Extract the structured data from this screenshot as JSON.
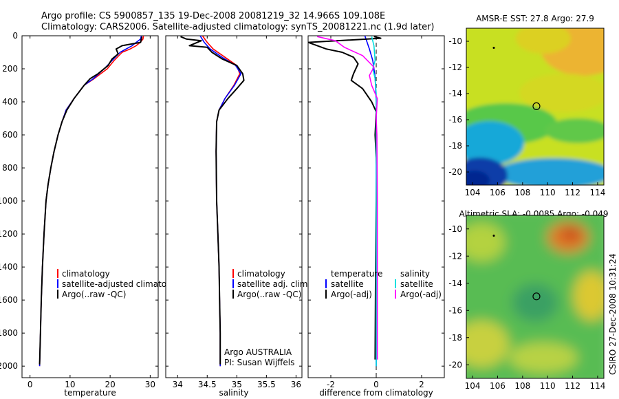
{
  "header": {
    "line1": "Argo profile: CS 5900857_135 19-Dec-2008 20081219_32 14.966S 109.108E",
    "line2": "Climatology: CARS2006. Satellite-adjusted climatology: synTS_20081221.nc (1.9d later)"
  },
  "footer": {
    "stamp": "CSIRO 27-Dec-2008 10:31:24"
  },
  "colors": {
    "climatology": "#ff0000",
    "satellite": "#0000ff",
    "argo": "#000000",
    "sal_satellite": "#00e0e0",
    "sal_argo": "#ff00ff"
  },
  "chart_data": [
    {
      "type": "line",
      "id": "temperature",
      "xlabel": "temperature",
      "xlim": [
        -2,
        32
      ],
      "xticks": [
        0,
        10,
        20,
        30
      ],
      "ylim": [
        2070,
        0
      ],
      "yticks": [
        0,
        200,
        400,
        600,
        800,
        1000,
        1200,
        1400,
        1600,
        1800,
        2000
      ],
      "legend": [
        "climatology",
        "satellite-adjusted climatology",
        "Argo(..raw -QC)"
      ],
      "series": [
        {
          "name": "climatology",
          "color": "#ff0000",
          "points": [
            [
              28.3,
              0
            ],
            [
              28.2,
              20
            ],
            [
              27.5,
              40
            ],
            [
              26.5,
              60
            ],
            [
              25,
              80
            ],
            [
              23,
              100
            ],
            [
              21,
              150
            ],
            [
              19.3,
              200
            ],
            [
              16,
              260
            ],
            [
              13.5,
              300
            ],
            [
              11,
              380
            ],
            [
              9,
              450
            ],
            [
              8,
              520
            ],
            [
              7,
              600
            ],
            [
              6,
              700
            ],
            [
              5.2,
              800
            ],
            [
              4.5,
              900
            ],
            [
              4,
              1000
            ],
            [
              3.5,
              1200
            ],
            [
              3.1,
              1400
            ],
            [
              2.8,
              1600
            ],
            [
              2.6,
              1800
            ],
            [
              2.4,
              2000
            ]
          ]
        },
        {
          "name": "satellite-adjusted climatology",
          "color": "#0000ff",
          "points": [
            [
              27.8,
              0
            ],
            [
              27.6,
              20
            ],
            [
              26.5,
              40
            ],
            [
              25.5,
              60
            ],
            [
              24,
              80
            ],
            [
              22.5,
              100
            ],
            [
              20.5,
              150
            ],
            [
              18.5,
              200
            ],
            [
              15.8,
              260
            ],
            [
              13.5,
              300
            ],
            [
              11,
              380
            ],
            [
              9,
              450
            ],
            [
              8,
              520
            ],
            [
              7,
              600
            ],
            [
              6,
              700
            ],
            [
              5.2,
              800
            ],
            [
              4.5,
              900
            ],
            [
              4,
              1000
            ],
            [
              3.5,
              1200
            ],
            [
              3.1,
              1400
            ],
            [
              2.8,
              1600
            ],
            [
              2.6,
              1800
            ],
            [
              2.4,
              2000
            ]
          ]
        },
        {
          "name": "Argo(..raw -QC)",
          "color": "#000000",
          "points": [
            [
              27.9,
              5
            ],
            [
              27.8,
              20
            ],
            [
              27.6,
              40
            ],
            [
              23,
              60
            ],
            [
              21.5,
              80
            ],
            [
              22,
              110
            ],
            [
              20.5,
              140
            ],
            [
              19.5,
              180
            ],
            [
              17,
              230
            ],
            [
              15,
              260
            ],
            [
              13.5,
              300
            ],
            [
              11,
              380
            ],
            [
              9.2,
              450
            ],
            [
              8,
              520
            ],
            [
              7,
              600
            ],
            [
              6,
              700
            ],
            [
              5.2,
              800
            ],
            [
              4.5,
              900
            ],
            [
              4,
              1000
            ],
            [
              3.5,
              1200
            ],
            [
              3.1,
              1400
            ],
            [
              2.8,
              1600
            ],
            [
              2.6,
              1800
            ],
            [
              2.4,
              1990
            ]
          ]
        }
      ]
    },
    {
      "type": "line",
      "id": "salinity",
      "xlabel": "salinity",
      "xlim": [
        33.8,
        36.1
      ],
      "xticks": [
        34,
        34.5,
        35,
        35.5,
        36
      ],
      "ylim": [
        2070,
        0
      ],
      "yticks": [
        0,
        200,
        400,
        600,
        800,
        1000,
        1200,
        1400,
        1600,
        1800,
        2000
      ],
      "legend": [
        "climatology",
        "satellite adj. clim.",
        "Argo(..raw -QC)"
      ],
      "notes": [
        "Argo AUSTRALIA",
        "PI: Susan Wijffels"
      ],
      "series": [
        {
          "name": "climatology",
          "color": "#ff0000",
          "points": [
            [
              34.42,
              0
            ],
            [
              34.5,
              40
            ],
            [
              34.6,
              80
            ],
            [
              34.8,
              130
            ],
            [
              35.0,
              180
            ],
            [
              35.05,
              230
            ],
            [
              34.95,
              300
            ],
            [
              34.8,
              380
            ],
            [
              34.7,
              450
            ],
            [
              34.66,
              520
            ],
            [
              34.65,
              700
            ],
            [
              34.66,
              1000
            ],
            [
              34.68,
              1200
            ],
            [
              34.7,
              1400
            ],
            [
              34.71,
              1600
            ],
            [
              34.72,
              1800
            ],
            [
              34.72,
              2000
            ]
          ]
        },
        {
          "name": "satellite adj. clim.",
          "color": "#0000ff",
          "points": [
            [
              34.38,
              0
            ],
            [
              34.45,
              40
            ],
            [
              34.55,
              80
            ],
            [
              34.75,
              130
            ],
            [
              34.98,
              180
            ],
            [
              35.07,
              230
            ],
            [
              34.96,
              300
            ],
            [
              34.8,
              380
            ],
            [
              34.7,
              450
            ],
            [
              34.66,
              520
            ],
            [
              34.65,
              700
            ],
            [
              34.66,
              1000
            ],
            [
              34.68,
              1200
            ],
            [
              34.7,
              1400
            ],
            [
              34.71,
              1600
            ],
            [
              34.72,
              1800
            ],
            [
              34.72,
              2000
            ]
          ]
        },
        {
          "name": "Argo(..raw -QC)",
          "color": "#000000",
          "points": [
            [
              34.05,
              5
            ],
            [
              34.15,
              20
            ],
            [
              34.4,
              30
            ],
            [
              34.2,
              60
            ],
            [
              34.5,
              70
            ],
            [
              34.58,
              100
            ],
            [
              34.75,
              140
            ],
            [
              35.0,
              180
            ],
            [
              35.1,
              230
            ],
            [
              35.12,
              270
            ],
            [
              35.0,
              320
            ],
            [
              34.85,
              380
            ],
            [
              34.7,
              450
            ],
            [
              34.66,
              520
            ],
            [
              34.65,
              700
            ],
            [
              34.66,
              1000
            ],
            [
              34.68,
              1200
            ],
            [
              34.7,
              1400
            ],
            [
              34.71,
              1600
            ],
            [
              34.72,
              1800
            ],
            [
              34.72,
              1990
            ]
          ]
        }
      ]
    },
    {
      "type": "line",
      "id": "difference",
      "xlabel": "difference from climatology",
      "xlim": [
        -3.0,
        3.0
      ],
      "xticks": [
        -2,
        0,
        2
      ],
      "ylim": [
        2070,
        0
      ],
      "yticks": [
        0,
        200,
        400,
        600,
        800,
        1000,
        1200,
        1400,
        1600,
        1800,
        2000
      ],
      "legend_temperature": [
        "temperature",
        "satellite",
        "Argo(-adj)"
      ],
      "legend_salinity": [
        "salinity",
        "satellite",
        "Argo(-adj)"
      ],
      "series": [
        {
          "name": "temperature satellite",
          "color": "#0000ff",
          "points": [
            [
              -0.5,
              0
            ],
            [
              -0.4,
              40
            ],
            [
              -0.3,
              80
            ],
            [
              -0.15,
              150
            ],
            [
              -0.05,
              250
            ],
            [
              0,
              400
            ],
            [
              0,
              2000
            ]
          ]
        },
        {
          "name": "temperature Argo(-adj)",
          "color": "#000000",
          "points": [
            [
              -0.1,
              5
            ],
            [
              0.2,
              15
            ],
            [
              -3.0,
              40
            ],
            [
              -2.2,
              80
            ],
            [
              -1.5,
              100
            ],
            [
              -1.0,
              130
            ],
            [
              -0.8,
              170
            ],
            [
              -1.0,
              230
            ],
            [
              -1.1,
              270
            ],
            [
              -0.6,
              320
            ],
            [
              -0.2,
              400
            ],
            [
              0,
              460
            ],
            [
              -0.05,
              600
            ],
            [
              0.02,
              800
            ],
            [
              0,
              1000
            ],
            [
              -0.03,
              1500
            ],
            [
              -0.05,
              1960
            ]
          ]
        },
        {
          "name": "salinity satellite",
          "color": "#00e0e0",
          "points": [
            [
              -0.2,
              5
            ],
            [
              -0.1,
              60
            ],
            [
              -0.05,
              150
            ],
            [
              -0.15,
              200
            ],
            [
              -0.05,
              260
            ],
            [
              0,
              350
            ],
            [
              0,
              2000
            ]
          ]
        },
        {
          "name": "salinity Argo(-adj)",
          "color": "#ff00ff",
          "points": [
            [
              -2.6,
              5
            ],
            [
              -1.8,
              30
            ],
            [
              -1.4,
              70
            ],
            [
              -0.6,
              120
            ],
            [
              -0.1,
              190
            ],
            [
              -0.3,
              240
            ],
            [
              -0.2,
              300
            ],
            [
              0.05,
              380
            ],
            [
              0,
              500
            ],
            [
              0.03,
              600
            ],
            [
              0.04,
              800
            ],
            [
              0.05,
              1000
            ],
            [
              0.05,
              1960
            ]
          ]
        }
      ]
    },
    {
      "type": "heatmap",
      "id": "sst_map",
      "title": "AMSR-E SST: 27.8 Argo: 27.9",
      "xlim": [
        103.5,
        114.5
      ],
      "ylim": [
        -21,
        -9
      ],
      "xticks": [
        104,
        106,
        108,
        110,
        112,
        114
      ],
      "yticks": [
        -10,
        -12,
        -14,
        -16,
        -18,
        -20
      ],
      "marker": [
        109.108,
        -14.966
      ]
    },
    {
      "type": "heatmap",
      "id": "sla_map",
      "title": "Altimetric SLA: -0.0085 Argo: -0.049",
      "xlim": [
        103.5,
        114.5
      ],
      "ylim": [
        -21,
        -9
      ],
      "xticks": [
        104,
        106,
        108,
        110,
        112,
        114
      ],
      "yticks": [
        -10,
        -12,
        -14,
        -16,
        -18,
        -20
      ],
      "marker": [
        109.108,
        -14.966
      ]
    }
  ]
}
